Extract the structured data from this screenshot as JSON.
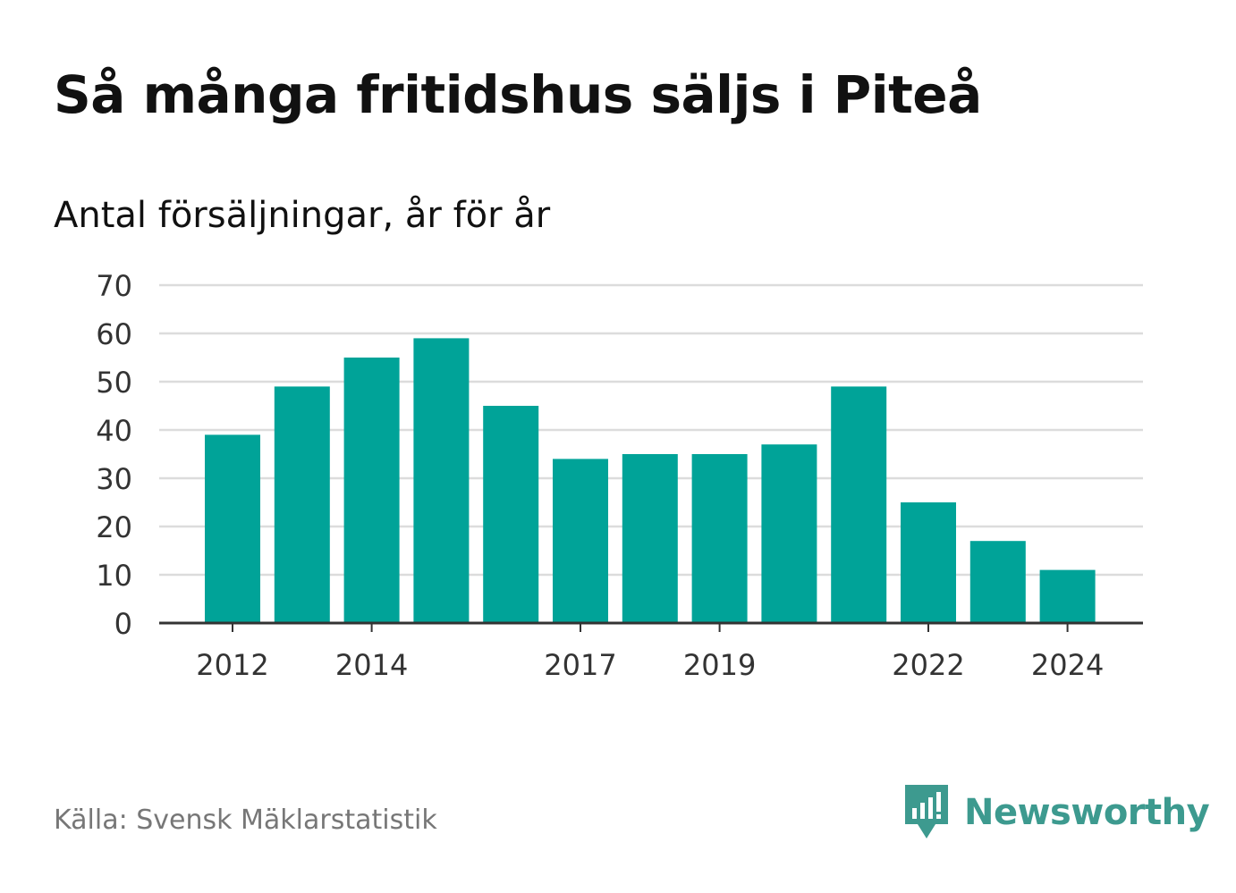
{
  "header": {
    "title": "Så många fritidshus säljs i Piteå",
    "subtitle": "Antal försäljningar, år för år"
  },
  "footer": {
    "source": "Källa: Svensk Mäklarstatistik",
    "brand": "Newsworthy",
    "brand_icon": "newsworthy-logo-icon",
    "brand_color": "#3d9a8f"
  },
  "chart_data": {
    "type": "bar",
    "title": "Så många fritidshus säljs i Piteå",
    "subtitle": "Antal försäljningar, år för år",
    "categories": [
      2012,
      2013,
      2014,
      2015,
      2016,
      2017,
      2018,
      2019,
      2020,
      2021,
      2022,
      2023,
      2024
    ],
    "values": [
      39,
      49,
      55,
      59,
      45,
      34,
      35,
      35,
      37,
      49,
      25,
      17,
      11
    ],
    "x_tick_labels": [
      2012,
      2014,
      2017,
      2019,
      2022,
      2024
    ],
    "y_ticks": [
      0,
      10,
      20,
      30,
      40,
      50,
      60,
      70
    ],
    "ylim": [
      0,
      70
    ],
    "grid": true,
    "legend": "none",
    "bar_color": "#00a398"
  }
}
